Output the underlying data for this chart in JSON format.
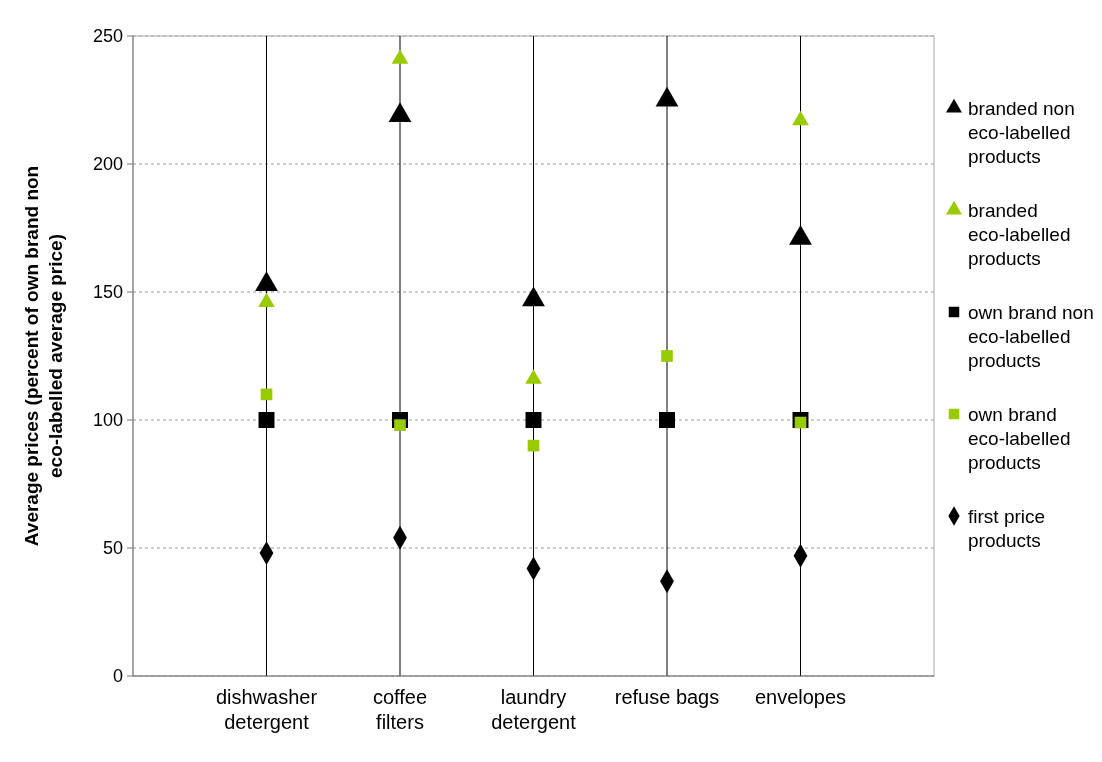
{
  "chart_data": {
    "type": "scatter",
    "ylabel": "Average prices (percent of own brand non eco-labelled average price)",
    "categories": [
      "dishwasher detergent",
      "coffee filters",
      "laundry detergent",
      "refuse bags",
      "envelopes"
    ],
    "ylim": [
      0,
      250
    ],
    "yticks": [
      0,
      50,
      100,
      150,
      200,
      250
    ],
    "grid": true,
    "legend": "right",
    "series": [
      {
        "name": "branded non eco-labelled products",
        "color": "#000000",
        "marker": "triangle",
        "values": [
          153,
          219,
          147,
          225,
          171
        ]
      },
      {
        "name": "branded eco-labelled products",
        "color": "#99cc00",
        "marker": "triangle",
        "values": [
          146,
          241,
          116,
          null,
          217
        ]
      },
      {
        "name": "own brand non eco-labelled products",
        "color": "#000000",
        "marker": "square",
        "values": [
          100,
          100,
          100,
          100,
          100
        ]
      },
      {
        "name": "own brand eco-labelled products",
        "color": "#99cc00",
        "marker": "square",
        "values": [
          110,
          98,
          90,
          125,
          99
        ]
      },
      {
        "name": "first price products",
        "color": "#000000",
        "marker": "diamond",
        "values": [
          48,
          54,
          42,
          37,
          47
        ]
      }
    ]
  }
}
